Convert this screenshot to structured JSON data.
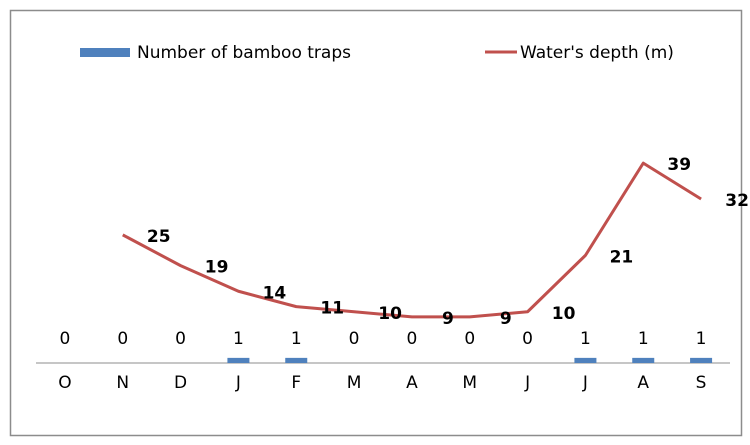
{
  "chart_data": {
    "type": "bar-line",
    "categories": [
      "O",
      "N",
      "D",
      "J",
      "F",
      "M",
      "A",
      "M",
      "J",
      "J",
      "A",
      "S"
    ],
    "series": [
      {
        "name": "Number of bamboo traps",
        "type": "bar",
        "color": "#4f81bd",
        "values": [
          0,
          0,
          0,
          1,
          1,
          0,
          0,
          0,
          0,
          1,
          1,
          1
        ]
      },
      {
        "name": "Water's depth (m)",
        "type": "line",
        "color": "#c0504d",
        "values": [
          null,
          25,
          19,
          14,
          11,
          10,
          9,
          9,
          10,
          21,
          39,
          32
        ]
      }
    ],
    "ylim": [
      0,
      40
    ],
    "legend": "top"
  }
}
